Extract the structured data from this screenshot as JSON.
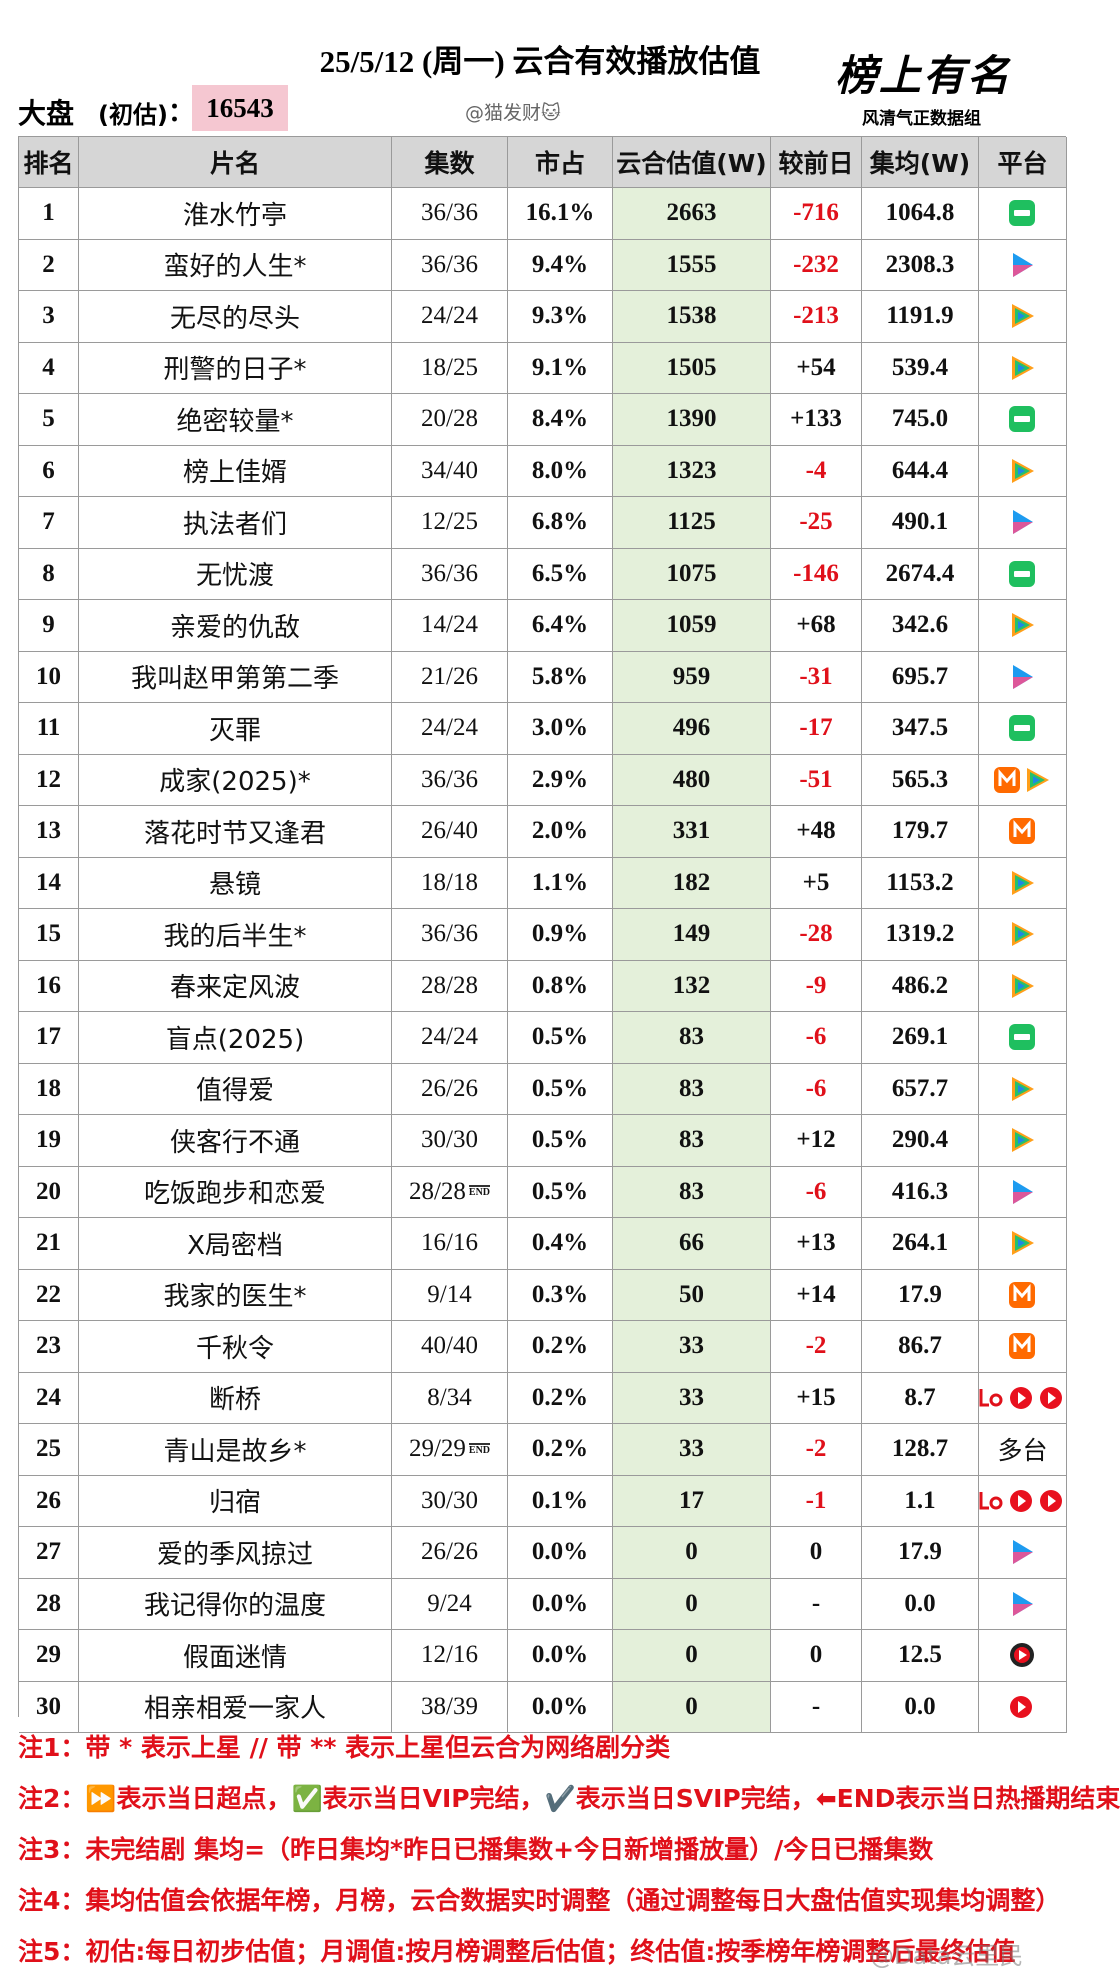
{
  "header": {
    "title": "25/5/12 (周一) 云合有效播放估值",
    "market_label": "大盘",
    "estimate_label": "(初估)",
    "colon": "：",
    "market_value": "16543",
    "author": "@猫发财🐱",
    "logo_title": "榜上有名",
    "logo_subtitle": "风清气正数据组"
  },
  "table": {
    "columns": [
      "排名",
      "片名",
      "集数",
      "市占",
      "云合估值(W)",
      "较前日",
      "集均(W)",
      "平台"
    ],
    "rows": [
      [
        "1",
        "淮水竹亭",
        "36/36",
        "16.1%",
        "2663",
        "-716",
        "1064.8"
      ],
      [
        "2",
        "蛮好的人生*",
        "36/36",
        "9.4%",
        "1555",
        "-232",
        "2308.3"
      ],
      [
        "3",
        "无尽的尽头",
        "24/24",
        "9.3%",
        "1538",
        "-213",
        "1191.9"
      ],
      [
        "4",
        "刑警的日子*",
        "18/25",
        "9.1%",
        "1505",
        "+54",
        "539.4"
      ],
      [
        "5",
        "绝密较量*",
        "20/28",
        "8.4%",
        "1390",
        "+133",
        "745.0"
      ],
      [
        "6",
        "榜上佳婿",
        "34/40",
        "8.0%",
        "1323",
        "-4",
        "644.4"
      ],
      [
        "7",
        "执法者们",
        "12/25",
        "6.8%",
        "1125",
        "-25",
        "490.1"
      ],
      [
        "8",
        "无忧渡",
        "36/36",
        "6.5%",
        "1075",
        "-146",
        "2674.4"
      ],
      [
        "9",
        "亲爱的仇敌",
        "14/24",
        "6.4%",
        "1059",
        "+68",
        "342.6"
      ],
      [
        "10",
        "我叫赵甲第第二季",
        "21/26",
        "5.8%",
        "959",
        "-31",
        "695.7"
      ],
      [
        "11",
        "灭罪",
        "24/24",
        "3.0%",
        "496",
        "-17",
        "347.5"
      ],
      [
        "12",
        "成家(2025)*",
        "36/36",
        "2.9%",
        "480",
        "-51",
        "565.3"
      ],
      [
        "13",
        "落花时节又逢君",
        "26/40",
        "2.0%",
        "331",
        "+48",
        "179.7"
      ],
      [
        "14",
        "悬镜",
        "18/18",
        "1.1%",
        "182",
        "+5",
        "1153.2"
      ],
      [
        "15",
        "我的后半生*",
        "36/36",
        "0.9%",
        "149",
        "-28",
        "1319.2"
      ],
      [
        "16",
        "春来定风波",
        "28/28",
        "0.8%",
        "132",
        "-9",
        "486.2"
      ],
      [
        "17",
        "盲点(2025)",
        "24/24",
        "0.5%",
        "83",
        "-6",
        "269.1"
      ],
      [
        "18",
        "值得爱",
        "26/26",
        "0.5%",
        "83",
        "-6",
        "657.7"
      ],
      [
        "19",
        "侠客行不通",
        "30/30",
        "0.5%",
        "83",
        "+12",
        "290.4"
      ],
      [
        "20",
        "吃饭跑步和恋爱",
        {
          "text": "28/28",
          "badge": "END"
        },
        "0.5%",
        "83",
        "-6",
        "416.3"
      ],
      [
        "21",
        "X局密档",
        "16/16",
        "0.4%",
        "66",
        "+13",
        "264.1"
      ],
      [
        "22",
        "我家的医生*",
        "9/14",
        "0.3%",
        "50",
        "+14",
        "17.9"
      ],
      [
        "23",
        "千秋令",
        "40/40",
        "0.2%",
        "33",
        "-2",
        "86.7"
      ],
      [
        "24",
        "断桥",
        "8/34",
        "0.2%",
        "33",
        "+15",
        "8.7"
      ],
      [
        "25",
        "青山是故乡*",
        {
          "text": "29/29",
          "badge": "END"
        },
        "0.2%",
        "33",
        "-2",
        "128.7",
        "多台"
      ],
      [
        "26",
        "归宿",
        "30/30",
        "0.1%",
        "17",
        "-1",
        "1.1"
      ],
      [
        "27",
        "爱的季风掠过",
        "26/26",
        "0.0%",
        "0",
        "0",
        "17.9"
      ],
      [
        "28",
        "我记得你的温度",
        "9/24",
        "0.0%",
        "0",
        "-",
        "0.0"
      ],
      [
        "29",
        "假面迷情",
        "12/16",
        "0.0%",
        "0",
        "0",
        "12.5"
      ],
      [
        "30",
        "相亲相爱一家人",
        "38/39",
        "0.0%",
        "0",
        "-",
        "0.0"
      ]
    ]
  },
  "notes": [
    "注1：带 * 表示上星 // 带 ** 表示上星但云合为网络剧分类",
    "注2：⏩表示当日超点，✅表示当日VIP完结，✔️表示当日SVIP完结，⬅END表示当日热播期结束",
    "注3：未完结剧 集均=（昨日集均*昨日已播集数+今日新增播放量）/今日已播集数",
    "注4：集均估值会依据年榜，月榜，云合数据实时调整（通过调整每日大盘估值实现集均调整）",
    "注5：初估:每日初步估值；月调值:按月榜调整后估值；终估值:按季榜年榜调整后最终估值"
  ],
  "watermark": "@Data云里民"
}
